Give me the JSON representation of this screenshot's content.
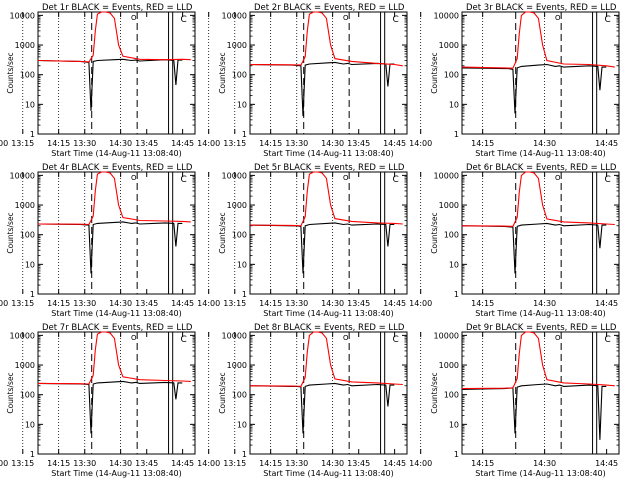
{
  "figure": {
    "panel_titles": [
      "Det 1r BLACK = Events, RED = LLD",
      "Det 2r BLACK = Events, RED = LLD",
      "Det 3r BLACK = Events, RED = LLD",
      "Det 4r BLACK = Events, RED = LLD",
      "Det 5r BLACK = Events, RED = LLD",
      "Det 6r BLACK = Events, RED = LLD",
      "Det 7r BLACK = Events, RED = LLD",
      "Det 8r BLACK = Events, RED = LLD",
      "Det 9r BLACK = Events, RED = LLD"
    ],
    "ylabel": "Counts/sec",
    "xlabel": "Start Time (14-Aug-11 13:08:40)",
    "x_tick_labels": [
      "13:15",
      "13:30",
      "13:45",
      "14:00",
      "14:15",
      "14:30",
      "14:45"
    ],
    "y_tick_labels": [
      "1",
      "10",
      "100",
      "1000",
      "10000"
    ],
    "colors": {
      "events": "#000000",
      "lld": "#ff0000"
    }
  },
  "chart_data": [
    {
      "type": "line",
      "title": "Det 1r BLACK = Events, RED = LLD",
      "ylabel": "Counts/sec",
      "xlabel": "Start Time (14-Aug-11 13:08:40)",
      "x_units": "minutes after 13:00",
      "xlim": [
        10,
        47
      ],
      "yscale": "log",
      "ylim": [
        1,
        13000
      ],
      "marker_letters": [
        "O",
        "C"
      ],
      "series": [
        {
          "name": "Events",
          "color": "#000000",
          "x": [
            10,
            15,
            20,
            21,
            22,
            22.5,
            23,
            24,
            28,
            30,
            32,
            33,
            34,
            40,
            42,
            42.5,
            43,
            44
          ],
          "y": [
            300,
            290,
            280,
            270,
            260,
            6,
            280,
            300,
            320,
            330,
            300,
            310,
            290,
            320,
            300,
            45,
            310,
            310
          ]
        },
        {
          "name": "LLD",
          "color": "#ff0000",
          "x": [
            10,
            20,
            22,
            23,
            23.5,
            24,
            25,
            26,
            27,
            28,
            29,
            30,
            34,
            40,
            44,
            46
          ],
          "y": [
            300,
            280,
            270,
            450,
            3000,
            11000,
            13000,
            13000,
            12000,
            8000,
            1000,
            420,
            330,
            320,
            330,
            320
          ]
        }
      ]
    },
    {
      "type": "line",
      "title": "Det 2r BLACK = Events, RED = LLD",
      "ylabel": "Counts/sec",
      "xlabel": "Start Time (14-Aug-11 13:08:40)",
      "x_units": "minutes after 13:00",
      "xlim": [
        10,
        47
      ],
      "yscale": "log",
      "ylim": [
        1,
        13000
      ],
      "marker_letters": [
        "O",
        "C"
      ],
      "series": [
        {
          "name": "Events",
          "color": "#000000",
          "x": [
            10,
            15,
            20,
            21,
            22,
            22.5,
            23,
            24,
            28,
            30,
            32,
            33,
            34,
            40,
            42,
            42.5,
            43,
            44
          ],
          "y": [
            220,
            215,
            210,
            205,
            200,
            4,
            210,
            230,
            250,
            260,
            230,
            240,
            220,
            240,
            230,
            40,
            230,
            230
          ]
        },
        {
          "name": "LLD",
          "color": "#ff0000",
          "x": [
            10,
            20,
            22,
            23,
            23.5,
            24,
            25,
            26,
            27,
            28,
            29,
            30,
            34,
            40,
            44,
            46
          ],
          "y": [
            220,
            215,
            210,
            400,
            3000,
            11000,
            13000,
            13000,
            12000,
            8000,
            1000,
            350,
            280,
            240,
            220,
            200
          ]
        }
      ]
    },
    {
      "type": "line",
      "title": "Det 3r BLACK = Events, RED = LLD",
      "ylabel": "Counts/sec",
      "xlabel": "Start Time (14-Aug-11 13:08:40)",
      "x_units": "minutes after 13:00",
      "xlim": [
        10,
        47
      ],
      "yscale": "log",
      "ylim": [
        1,
        13000
      ],
      "marker_letters": [
        "O",
        "C"
      ],
      "series": [
        {
          "name": "Events",
          "color": "#000000",
          "x": [
            10,
            15,
            20,
            21,
            22,
            22.5,
            23,
            24,
            28,
            30,
            32,
            33,
            34,
            40,
            42,
            42.5,
            43,
            44
          ],
          "y": [
            170,
            165,
            160,
            160,
            150,
            5,
            170,
            190,
            210,
            220,
            190,
            200,
            180,
            200,
            190,
            30,
            180,
            180
          ]
        },
        {
          "name": "LLD",
          "color": "#ff0000",
          "x": [
            10,
            20,
            22,
            23,
            23.5,
            24,
            25,
            26,
            27,
            28,
            29,
            30,
            34,
            40,
            44,
            46
          ],
          "y": [
            180,
            170,
            165,
            350,
            2500,
            10000,
            13000,
            13000,
            12000,
            8000,
            1000,
            300,
            230,
            220,
            200,
            180
          ]
        }
      ]
    },
    {
      "type": "line",
      "title": "Det 4r BLACK = Events, RED = LLD",
      "ylabel": "Counts/sec",
      "xlabel": "Start Time (14-Aug-11 13:08:40)",
      "x_units": "minutes after 13:00",
      "xlim": [
        10,
        47
      ],
      "yscale": "log",
      "ylim": [
        1,
        13000
      ],
      "marker_letters": [
        "O",
        "C"
      ],
      "series": [
        {
          "name": "Events",
          "color": "#000000",
          "x": [
            10,
            15,
            20,
            21,
            22,
            22.5,
            23,
            24,
            28,
            30,
            32,
            33,
            34,
            40,
            42,
            42.5,
            43,
            44
          ],
          "y": [
            230,
            225,
            220,
            215,
            210,
            5,
            220,
            240,
            260,
            270,
            240,
            250,
            230,
            250,
            240,
            40,
            240,
            240
          ]
        },
        {
          "name": "LLD",
          "color": "#ff0000",
          "x": [
            10,
            20,
            22,
            23,
            23.5,
            24,
            25,
            26,
            27,
            28,
            29,
            30,
            34,
            40,
            44,
            46
          ],
          "y": [
            230,
            225,
            220,
            420,
            3000,
            11000,
            13000,
            13000,
            12000,
            8000,
            1000,
            380,
            300,
            290,
            280,
            270
          ]
        }
      ]
    },
    {
      "type": "line",
      "title": "Det 5r BLACK = Events, RED = LLD",
      "ylabel": "Counts/sec",
      "xlabel": "Start Time (14-Aug-11 13:08:40)",
      "x_units": "minutes after 13:00",
      "xlim": [
        10,
        47
      ],
      "yscale": "log",
      "ylim": [
        1,
        13000
      ],
      "marker_letters": [
        "O",
        "C"
      ],
      "series": [
        {
          "name": "Events",
          "color": "#000000",
          "x": [
            10,
            15,
            20,
            21,
            22,
            22.5,
            23,
            24,
            28,
            30,
            32,
            33,
            34,
            40,
            42,
            42.5,
            43,
            44
          ],
          "y": [
            210,
            205,
            200,
            200,
            190,
            5,
            200,
            220,
            240,
            250,
            220,
            230,
            210,
            230,
            220,
            40,
            220,
            220
          ]
        },
        {
          "name": "LLD",
          "color": "#ff0000",
          "x": [
            10,
            20,
            22,
            23,
            23.5,
            24,
            25,
            26,
            27,
            28,
            29,
            30,
            34,
            40,
            44,
            46
          ],
          "y": [
            210,
            205,
            200,
            400,
            3000,
            11000,
            13000,
            13000,
            12000,
            8000,
            1000,
            350,
            280,
            250,
            240,
            230
          ]
        }
      ]
    },
    {
      "type": "line",
      "title": "Det 6r BLACK = Events, RED = LLD",
      "ylabel": "Counts/sec",
      "xlabel": "Start Time (14-Aug-11 13:08:40)",
      "x_units": "minutes after 13:00",
      "xlim": [
        10,
        47
      ],
      "yscale": "log",
      "ylim": [
        1,
        13000
      ],
      "marker_letters": [
        "O",
        "C"
      ],
      "series": [
        {
          "name": "Events",
          "color": "#000000",
          "x": [
            10,
            15,
            20,
            21,
            22,
            22.5,
            23,
            24,
            28,
            30,
            32,
            33,
            34,
            40,
            42,
            42.5,
            43,
            44
          ],
          "y": [
            200,
            195,
            190,
            185,
            180,
            5,
            190,
            210,
            230,
            240,
            210,
            220,
            200,
            220,
            210,
            35,
            210,
            210
          ]
        },
        {
          "name": "LLD",
          "color": "#ff0000",
          "x": [
            10,
            20,
            22,
            23,
            23.5,
            24,
            25,
            26,
            27,
            28,
            29,
            30,
            34,
            40,
            44,
            46
          ],
          "y": [
            200,
            195,
            190,
            380,
            2800,
            10000,
            13000,
            13000,
            12000,
            8000,
            1000,
            340,
            270,
            250,
            230,
            220
          ]
        }
      ]
    },
    {
      "type": "line",
      "title": "Det 7r BLACK = Events, RED = LLD",
      "ylabel": "Counts/sec",
      "xlabel": "Start Time (14-Aug-11 13:08:40)",
      "x_units": "minutes after 13:00",
      "xlim": [
        10,
        47
      ],
      "yscale": "log",
      "ylim": [
        1,
        13000
      ],
      "marker_letters": [
        "O",
        "C"
      ],
      "series": [
        {
          "name": "Events",
          "color": "#000000",
          "x": [
            10,
            15,
            20,
            21,
            22,
            22.5,
            23,
            24,
            28,
            30,
            32,
            33,
            34,
            40,
            42,
            42.5,
            43,
            44
          ],
          "y": [
            240,
            235,
            230,
            225,
            220,
            5,
            230,
            250,
            270,
            280,
            250,
            260,
            240,
            260,
            250,
            70,
            250,
            250
          ]
        },
        {
          "name": "LLD",
          "color": "#ff0000",
          "x": [
            10,
            20,
            22,
            23,
            23.5,
            24,
            25,
            26,
            27,
            28,
            29,
            30,
            34,
            40,
            44,
            46
          ],
          "y": [
            240,
            235,
            230,
            450,
            3200,
            11000,
            13000,
            13000,
            12000,
            8000,
            1000,
            400,
            320,
            300,
            290,
            280
          ]
        }
      ]
    },
    {
      "type": "line",
      "title": "Det 8r BLACK = Events, RED = LLD",
      "ylabel": "Counts/sec",
      "xlabel": "Start Time (14-Aug-11 13:08:40)",
      "x_units": "minutes after 13:00",
      "xlim": [
        10,
        47
      ],
      "yscale": "log",
      "ylim": [
        1,
        13000
      ],
      "marker_letters": [
        "O",
        "C"
      ],
      "series": [
        {
          "name": "Events",
          "color": "#000000",
          "x": [
            10,
            15,
            20,
            21,
            22,
            22.5,
            23,
            24,
            28,
            30,
            32,
            33,
            34,
            40,
            42,
            42.5,
            43,
            44
          ],
          "y": [
            200,
            195,
            190,
            190,
            185,
            5,
            190,
            210,
            230,
            240,
            210,
            220,
            200,
            220,
            210,
            40,
            210,
            210
          ]
        },
        {
          "name": "LLD",
          "color": "#ff0000",
          "x": [
            10,
            20,
            22,
            23,
            23.5,
            24,
            25,
            26,
            27,
            28,
            29,
            30,
            34,
            40,
            44,
            46
          ],
          "y": [
            200,
            195,
            190,
            380,
            2800,
            10000,
            13000,
            13000,
            12000,
            8000,
            1000,
            340,
            270,
            250,
            230,
            220
          ]
        }
      ]
    },
    {
      "type": "line",
      "title": "Det 9r BLACK = Events, RED = LLD",
      "ylabel": "Counts/sec",
      "xlabel": "Start Time (14-Aug-11 13:08:40)",
      "x_units": "minutes after 13:00",
      "xlim": [
        10,
        47
      ],
      "yscale": "log",
      "ylim": [
        1,
        13000
      ],
      "marker_letters": [
        "O",
        "C"
      ],
      "series": [
        {
          "name": "Events",
          "color": "#000000",
          "x": [
            10,
            15,
            20,
            21,
            22,
            22.5,
            23,
            24,
            28,
            30,
            32,
            33,
            34,
            40,
            42,
            42.5,
            43,
            44
          ],
          "y": [
            150,
            155,
            160,
            165,
            170,
            5,
            180,
            200,
            220,
            230,
            200,
            210,
            190,
            210,
            200,
            3,
            190,
            190
          ]
        },
        {
          "name": "LLD",
          "color": "#ff0000",
          "x": [
            10,
            20,
            22,
            23,
            23.5,
            24,
            25,
            26,
            27,
            28,
            29,
            30,
            34,
            40,
            44,
            46
          ],
          "y": [
            160,
            165,
            170,
            350,
            2500,
            10000,
            13000,
            13000,
            12000,
            8000,
            1000,
            320,
            250,
            230,
            210,
            200
          ]
        }
      ]
    }
  ]
}
